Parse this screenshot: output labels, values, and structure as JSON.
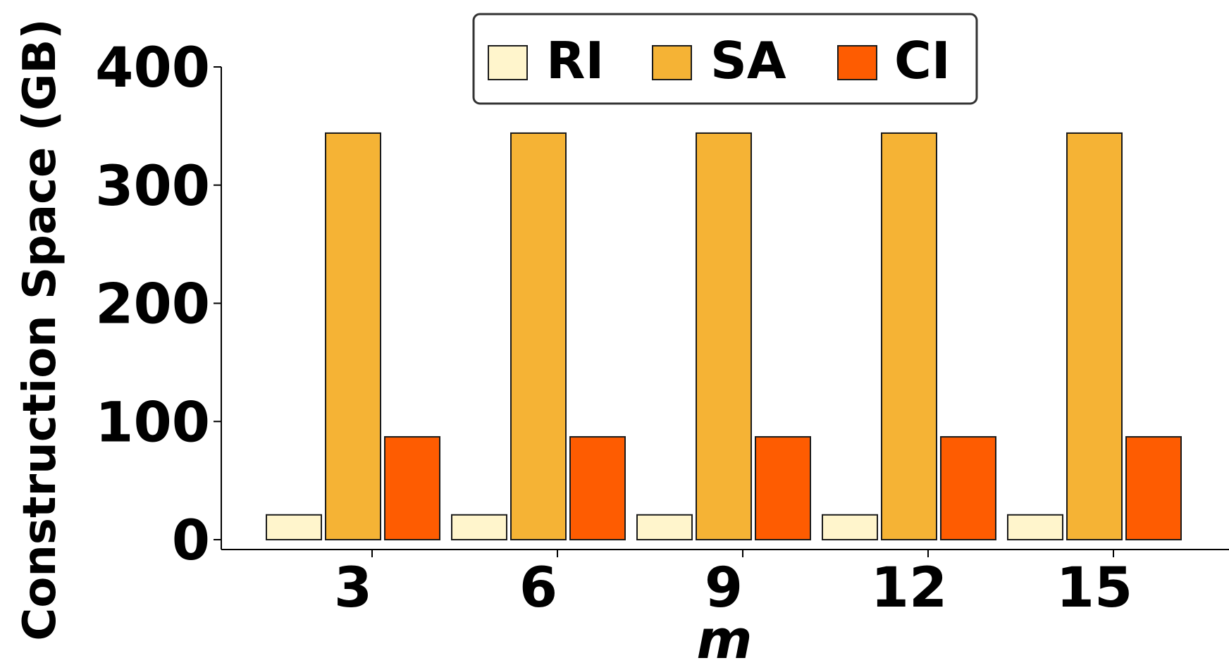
{
  "chart_data": {
    "type": "bar",
    "title": "",
    "xlabel": "m",
    "ylabel": "Construction Space (GB)",
    "categories": [
      "3",
      "6",
      "9",
      "12",
      "15"
    ],
    "series": [
      {
        "name": "RI",
        "color": "#fff5cc",
        "values": [
          21,
          21,
          21,
          21,
          21
        ]
      },
      {
        "name": "SA",
        "color": "#f5b335",
        "values": [
          344,
          344,
          344,
          344,
          344
        ]
      },
      {
        "name": "CI",
        "color": "#fe5c01",
        "values": [
          87,
          87,
          87,
          87,
          87
        ]
      }
    ],
    "ylim": [
      0,
      400
    ],
    "yticks": [
      "0",
      "100",
      "200",
      "300",
      "400"
    ],
    "legend": "top-center",
    "grid": false
  }
}
